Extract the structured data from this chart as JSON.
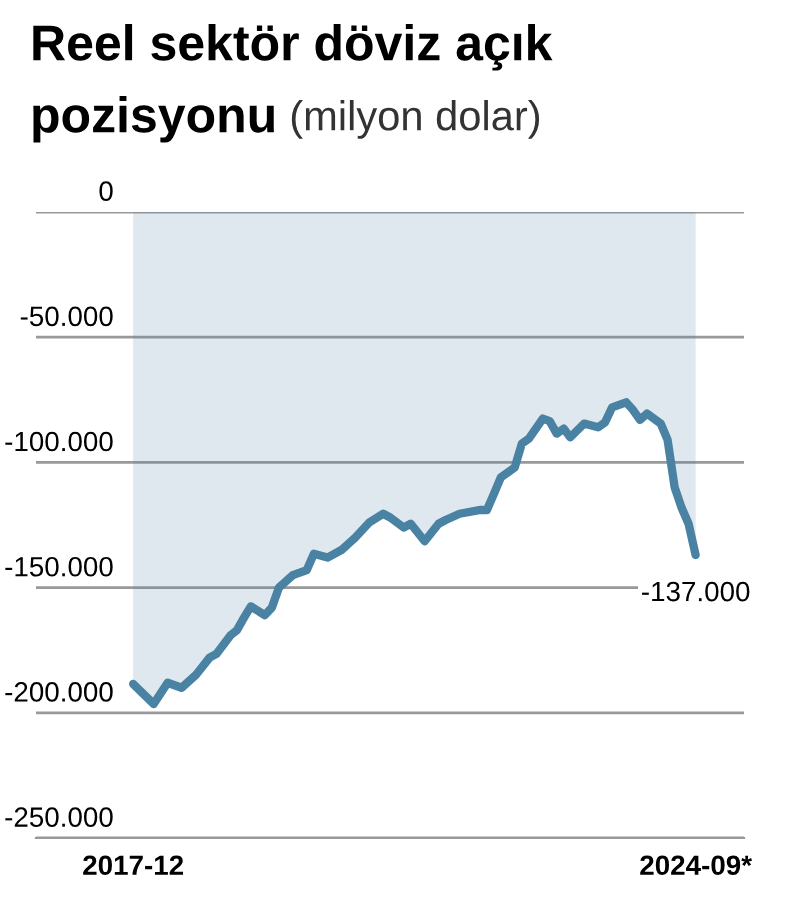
{
  "chart_data": {
    "type": "area",
    "title": "Reel sektör döviz açık pozisyonu",
    "subtitle": "(milyon dolar)",
    "x": [
      "2017-12",
      "2018-03",
      "2018-05",
      "2018-07",
      "2018-09",
      "2018-11",
      "2018-12",
      "2019-02",
      "2019-03",
      "2019-04",
      "2019-05",
      "2019-07",
      "2019-08",
      "2019-09",
      "2019-11",
      "2020-01",
      "2020-02",
      "2020-04",
      "2020-06",
      "2020-08",
      "2020-10",
      "2020-12",
      "2021-01",
      "2021-03",
      "2021-04",
      "2021-06",
      "2021-08",
      "2021-09",
      "2021-11",
      "2022-02",
      "2022-03",
      "2022-04",
      "2022-05",
      "2022-07",
      "2022-08",
      "2022-09",
      "2022-11",
      "2022-12",
      "2023-01",
      "2023-02",
      "2023-03",
      "2023-05",
      "2023-07",
      "2023-08",
      "2023-09",
      "2023-11",
      "2023-12",
      "2024-01",
      "2024-02",
      "2024-04",
      "2024-05",
      "2024-06",
      "2024-07",
      "2024-08",
      "2024-09"
    ],
    "series": [
      {
        "color": "#4a82a3",
        "values": [
          -188500,
          -196500,
          -188000,
          -190000,
          -185000,
          -178000,
          -176500,
          -169000,
          -167000,
          -162000,
          -157500,
          -161000,
          -158000,
          -150000,
          -145000,
          -143000,
          -136500,
          -138000,
          -135000,
          -130000,
          -124000,
          -120500,
          -122000,
          -126000,
          -124500,
          -131500,
          -124500,
          -123000,
          -120500,
          -119000,
          -119000,
          -112500,
          -106000,
          -102000,
          -92500,
          -90500,
          -82500,
          -83500,
          -88500,
          -86500,
          -90000,
          -84500,
          -86000,
          -84000,
          -78000,
          -76000,
          -79000,
          -83000,
          -80500,
          -84500,
          -91000,
          -110000,
          -118000,
          -124500,
          -137000
        ]
      }
    ],
    "xlim": [
      "2016-10",
      "2025-04"
    ],
    "xticks": [
      {
        "value": "2017-12",
        "label": "2017-12"
      },
      {
        "value": "2024-09",
        "label": "2024-09*"
      }
    ],
    "ylim": [
      -250000,
      0
    ],
    "yticks": [
      0,
      {
        "value": -50000,
        "label": "-50.000"
      },
      {
        "value": -100000,
        "label": "-100.000"
      },
      {
        "value": -150000,
        "label": "-150.000"
      },
      {
        "value": -200000,
        "label": "-200.000"
      },
      {
        "value": -250000,
        "label": "-250.000"
      }
    ],
    "annotations": [
      {
        "text": "-137.000",
        "x": "2024-09",
        "y": -137000
      }
    ],
    "grid": "y"
  }
}
